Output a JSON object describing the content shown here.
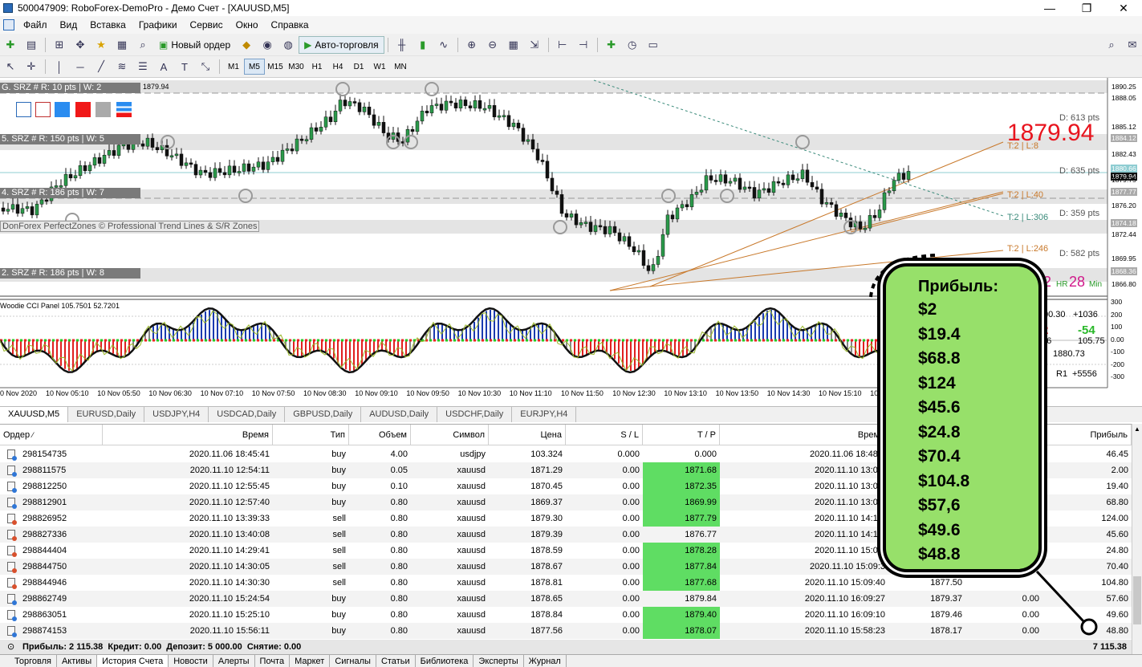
{
  "window": {
    "title": "500047909: RoboForex-DemoPro - Демо Счет - [XAUUSD,M5]",
    "minimize": "—",
    "restore": "❐",
    "close": "✕"
  },
  "menu": [
    "Файл",
    "Вид",
    "Вставка",
    "Графики",
    "Сервис",
    "Окно",
    "Справка"
  ],
  "toolbar": {
    "new_order": "Новый ордер",
    "autotrade": "Авто-торговля"
  },
  "tools": {
    "text_tool": "A",
    "label_tool": "T"
  },
  "timeframes": [
    "M1",
    "M5",
    "M15",
    "M30",
    "H1",
    "H4",
    "D1",
    "W1",
    "MN"
  ],
  "active_timeframe": "M5",
  "chart": {
    "zone_labels": [
      "G. SRZ # R: 10 pts | W: 2",
      "5. SRZ # R: 150 pts | W: 5",
      "4. SRZ # R: 186 pts | W: 7",
      "2. SRZ # R: 186 pts | W: 8"
    ],
    "top_price": "1879.94",
    "watermark": "DonForex PerfectZones © Professional Trend Lines & S/R Zones",
    "big_price": "1879.94",
    "d_labels": [
      "D: 613 pts",
      "D: 635 pts",
      "D: 359 pts",
      "D: 582 pts"
    ],
    "t_labels": [
      "T:2 | L:8",
      "T:2 | L:40",
      "T:2 | L:306",
      "T:2 | L:246"
    ],
    "hr_value": "2",
    "hr_label": "HR",
    "min_value": "28",
    "min_label": "Min",
    "price_scale": [
      "1890.25",
      "1888.05",
      "1885.12",
      "1884.12",
      "1882.43",
      "1880.66",
      "1879.94",
      "1879.75",
      "1877.77",
      "1876.20",
      "1874.18",
      "1872.44",
      "1869.95",
      "1868.36",
      "1866.80"
    ],
    "indicator_title": "Woodie CCI Panel 105.7501 52.7201",
    "cci_scale": [
      "300",
      "200",
      "100",
      "0.00",
      "-100",
      "-200",
      "-300"
    ],
    "panel_values": {
      "r1": "00.30",
      "r2": "+1036",
      "g": "-54",
      "v1": "36",
      "v2": "105.75",
      "v3": "1880.73",
      "v4": "R1",
      "v5": "+5556",
      "red": "2"
    },
    "time_axis": [
      "0 Nov 2020",
      "10 Nov 05:10",
      "10 Nov 05:50",
      "10 Nov 06:30",
      "10 Nov 07:10",
      "10 Nov 07:50",
      "10 Nov 08:30",
      "10 Nov 09:10",
      "10 Nov 09:50",
      "10 Nov 10:30",
      "10 Nov 11:10",
      "10 Nov 11:50",
      "10 Nov 12:30",
      "10 Nov 13:10",
      "10 Nov 13:50",
      "10 Nov 14:30",
      "10 Nov 15:10",
      "10 No"
    ]
  },
  "chart_tabs": [
    "XAUUSD,M5",
    "EURUSD,Daily",
    "USDJPY,H4",
    "USDCAD,Daily",
    "GBPUSD,Daily",
    "AUDUSD,Daily",
    "USDCHF,Daily",
    "EURJPY,H4"
  ],
  "headers": {
    "order": "Ордер",
    "time": "Время",
    "type": "Тип",
    "volume": "Объем",
    "symbol": "Символ",
    "price": "Цена",
    "sl": "S / L",
    "tp": "T / P",
    "close_time": "Время",
    "profit": "Прибыль"
  },
  "rows": [
    {
      "order": "298154735",
      "time": "2020.11.06 18:45:41",
      "type": "buy",
      "volume": "4.00",
      "symbol": "usdjpy",
      "price": "103.324",
      "sl": "0.000",
      "tp": "0.000",
      "tp_hl": false,
      "ctime": "2020.11.06 18:48:4",
      "cprice": "",
      "swap": "",
      "profit": "46.45"
    },
    {
      "order": "298811575",
      "time": "2020.11.10 12:54:11",
      "type": "buy",
      "volume": "0.05",
      "symbol": "xauusd",
      "price": "1871.29",
      "sl": "0.00",
      "tp": "1871.68",
      "tp_hl": true,
      "ctime": "2020.11.10 13:04:",
      "cprice": "",
      "swap": "",
      "profit": "2.00"
    },
    {
      "order": "298812250",
      "time": "2020.11.10 12:55:45",
      "type": "buy",
      "volume": "0.10",
      "symbol": "xauusd",
      "price": "1870.45",
      "sl": "0.00",
      "tp": "1872.35",
      "tp_hl": true,
      "ctime": "2020.11.10 13:04:",
      "cprice": "",
      "swap": "",
      "profit": "19.40"
    },
    {
      "order": "298812901",
      "time": "2020.11.10 12:57:40",
      "type": "buy",
      "volume": "0.80",
      "symbol": "xauusd",
      "price": "1869.37",
      "sl": "0.00",
      "tp": "1869.99",
      "tp_hl": true,
      "ctime": "2020.11.10 13:01:",
      "cprice": "",
      "swap": "",
      "profit": "68.80"
    },
    {
      "order": "298826952",
      "time": "2020.11.10 13:39:33",
      "type": "sell",
      "volume": "0.80",
      "symbol": "xauusd",
      "price": "1879.30",
      "sl": "0.00",
      "tp": "1877.79",
      "tp_hl": true,
      "ctime": "2020.11.10 14:15:",
      "cprice": "",
      "swap": "",
      "profit": "124.00"
    },
    {
      "order": "298827336",
      "time": "2020.11.10 13:40:08",
      "type": "sell",
      "volume": "0.80",
      "symbol": "xauusd",
      "price": "1879.39",
      "sl": "0.00",
      "tp": "1876.77",
      "tp_hl": false,
      "ctime": "2020.11.10 14:19:",
      "cprice": "",
      "swap": "",
      "profit": "45.60"
    },
    {
      "order": "298844404",
      "time": "2020.11.10 14:29:41",
      "type": "sell",
      "volume": "0.80",
      "symbol": "xauusd",
      "price": "1878.59",
      "sl": "0.00",
      "tp": "1878.28",
      "tp_hl": true,
      "ctime": "2020.11.10 15:09:",
      "cprice": "",
      "swap": "",
      "profit": "24.80"
    },
    {
      "order": "298844750",
      "time": "2020.11.10 14:30:05",
      "type": "sell",
      "volume": "0.80",
      "symbol": "xauusd",
      "price": "1878.67",
      "sl": "0.00",
      "tp": "1877.84",
      "tp_hl": true,
      "ctime": "2020.11.10 15:09:3",
      "cprice": "",
      "swap": "",
      "profit": "70.40"
    },
    {
      "order": "298844946",
      "time": "2020.11.10 14:30:30",
      "type": "sell",
      "volume": "0.80",
      "symbol": "xauusd",
      "price": "1878.81",
      "sl": "0.00",
      "tp": "1877.68",
      "tp_hl": true,
      "ctime": "2020.11.10 15:09:40",
      "cprice": "1877.50",
      "swap": "",
      "profit": "104.80"
    },
    {
      "order": "298862749",
      "time": "2020.11.10 15:24:54",
      "type": "buy",
      "volume": "0.80",
      "symbol": "xauusd",
      "price": "1878.65",
      "sl": "0.00",
      "tp": "1879.84",
      "tp_hl": false,
      "ctime": "2020.11.10 16:09:27",
      "cprice": "1879.37",
      "swap": "0.00",
      "profit": "57.60"
    },
    {
      "order": "298863051",
      "time": "2020.11.10 15:25:10",
      "type": "buy",
      "volume": "0.80",
      "symbol": "xauusd",
      "price": "1878.84",
      "sl": "0.00",
      "tp": "1879.40",
      "tp_hl": true,
      "ctime": "2020.11.10 16:09:10",
      "cprice": "1879.46",
      "swap": "0.00",
      "profit": "49.60"
    },
    {
      "order": "298874153",
      "time": "2020.11.10 15:56:11",
      "type": "buy",
      "volume": "0.80",
      "symbol": "xauusd",
      "price": "1877.56",
      "sl": "0.00",
      "tp": "1878.07",
      "tp_hl": true,
      "ctime": "2020.11.10 15:58:23",
      "cprice": "1878.17",
      "swap": "0.00",
      "profit": "48.80"
    }
  ],
  "totals": {
    "summary": "Прибыль: 2 115.38  Кредит: 0.00  Депозит: 5 000.00  Снятие: 0.00",
    "balance": "7 115.38"
  },
  "bottom_tabs": [
    "Торговля",
    "Активы",
    "История Счета",
    "Новости",
    "Алерты",
    "Почта",
    "Маркет",
    "Сигналы",
    "Статьи",
    "Библиотека",
    "Эксперты",
    "Журнал"
  ],
  "active_bottom_tab": "История Счета",
  "overlay": {
    "title": "Прибыль:",
    "values": [
      "$2",
      "$19.4",
      "$68.8",
      "$124",
      "$45.6",
      "$24.8",
      "$70.4",
      "$104.8",
      "$57,6",
      "$49.6",
      "$48.8"
    ]
  }
}
